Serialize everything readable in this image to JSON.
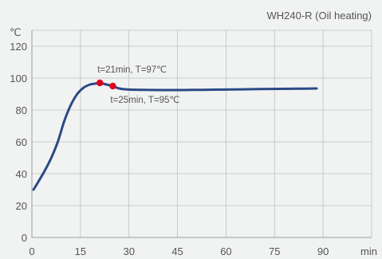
{
  "chart_data": {
    "type": "line",
    "title": "WH240-R (Oil heating)",
    "xlabel": "min",
    "ylabel": "℃",
    "xlim": [
      0,
      105
    ],
    "ylim": [
      0,
      130
    ],
    "x_ticks": [
      0,
      15,
      30,
      45,
      60,
      75,
      90
    ],
    "y_ticks": [
      0,
      20,
      40,
      60,
      80,
      100,
      120
    ],
    "grid": true,
    "colors": {
      "line": "#2b4a84",
      "marker": "#e0001b",
      "grid": "#bfc0c0",
      "background": "#f1f2f2"
    },
    "series": [
      {
        "x": [
          0.5,
          2,
          4,
          6,
          8,
          10,
          12,
          14,
          16,
          18,
          19.5,
          21,
          22,
          23,
          24,
          25,
          27,
          30,
          35,
          40,
          45,
          50,
          60,
          70,
          80,
          88
        ],
        "y": [
          30,
          35,
          42,
          50,
          60,
          73,
          83,
          90,
          94,
          96,
          96.5,
          97,
          96.5,
          96,
          95.5,
          95,
          93.5,
          92.8,
          92.6,
          92.5,
          92.5,
          92.6,
          92.8,
          93.1,
          93.3,
          93.5
        ]
      }
    ],
    "annotations": [
      {
        "x": 21,
        "y": 97,
        "text": "t=21min, T=97℃",
        "position": "above"
      },
      {
        "x": 25,
        "y": 95,
        "text": "t=25min, T=95℃",
        "position": "below"
      }
    ]
  }
}
